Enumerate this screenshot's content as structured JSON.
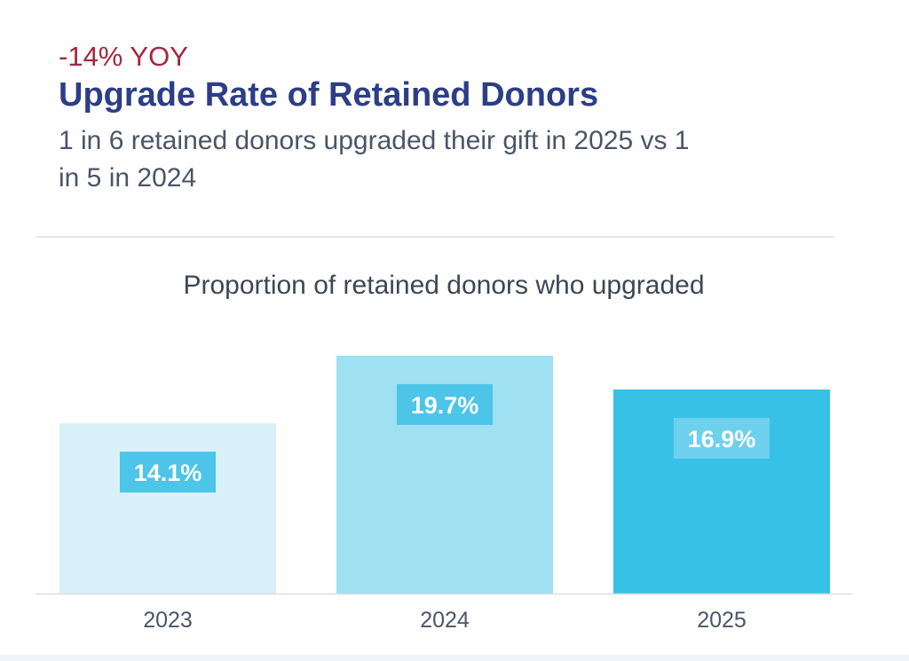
{
  "header": {
    "yoy_label": "-14% YOY",
    "title": "Upgrade Rate of Retained Donors",
    "subtitle": "1 in 6 retained donors upgraded their gift in 2025 vs 1 in 5 in 2024"
  },
  "colors": {
    "yoy": "#a6263e",
    "title": "#2c3e86",
    "bars": [
      "#d8f1f9",
      "#9fe0f3",
      "#38c1e6"
    ],
    "label_boxes": [
      "#4dc5e8",
      "#4dc5e8",
      "#6fd0ee"
    ]
  },
  "chart_data": {
    "type": "bar",
    "title": "Proportion of retained donors who upgraded",
    "categories": [
      "2023",
      "2024",
      "2025"
    ],
    "values": [
      14.1,
      19.7,
      16.9
    ],
    "data_labels": [
      "14.1%",
      "19.7%",
      "16.9%"
    ],
    "unit": "%",
    "xlabel": "",
    "ylabel": "",
    "ylim": [
      0,
      20.5
    ],
    "grid": false,
    "legend": "none"
  }
}
